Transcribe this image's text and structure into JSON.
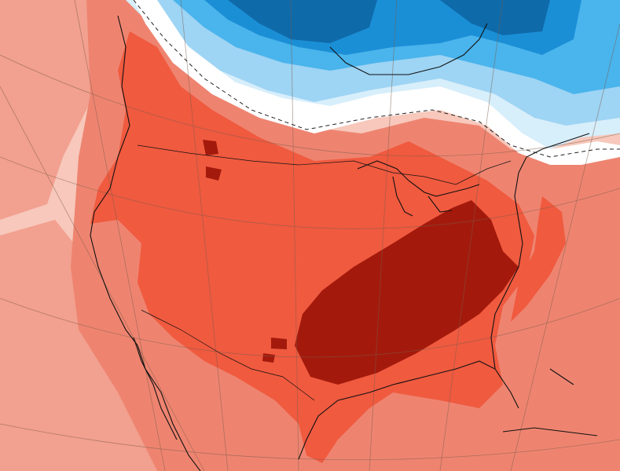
{
  "map": {
    "type": "temperature-anomaly",
    "region": "North America",
    "labels_visible": false,
    "colors": {
      "pale_warm": "#f7c8bb",
      "light_warm": "#f2a08f",
      "warm": "#ee8470",
      "hot": "#f05a3f",
      "very_hot": "#a31a0c",
      "neutral": "#ffffff",
      "pale_cool": "#d7eefb",
      "light_cool": "#9ed4f4",
      "cool": "#4ab4ec",
      "cold": "#1b8fd6",
      "very_cold": "#0f6aa9",
      "coastline": "#111111",
      "graticule": "#7a5b4a",
      "contour": "#222222"
    },
    "legend": null
  }
}
